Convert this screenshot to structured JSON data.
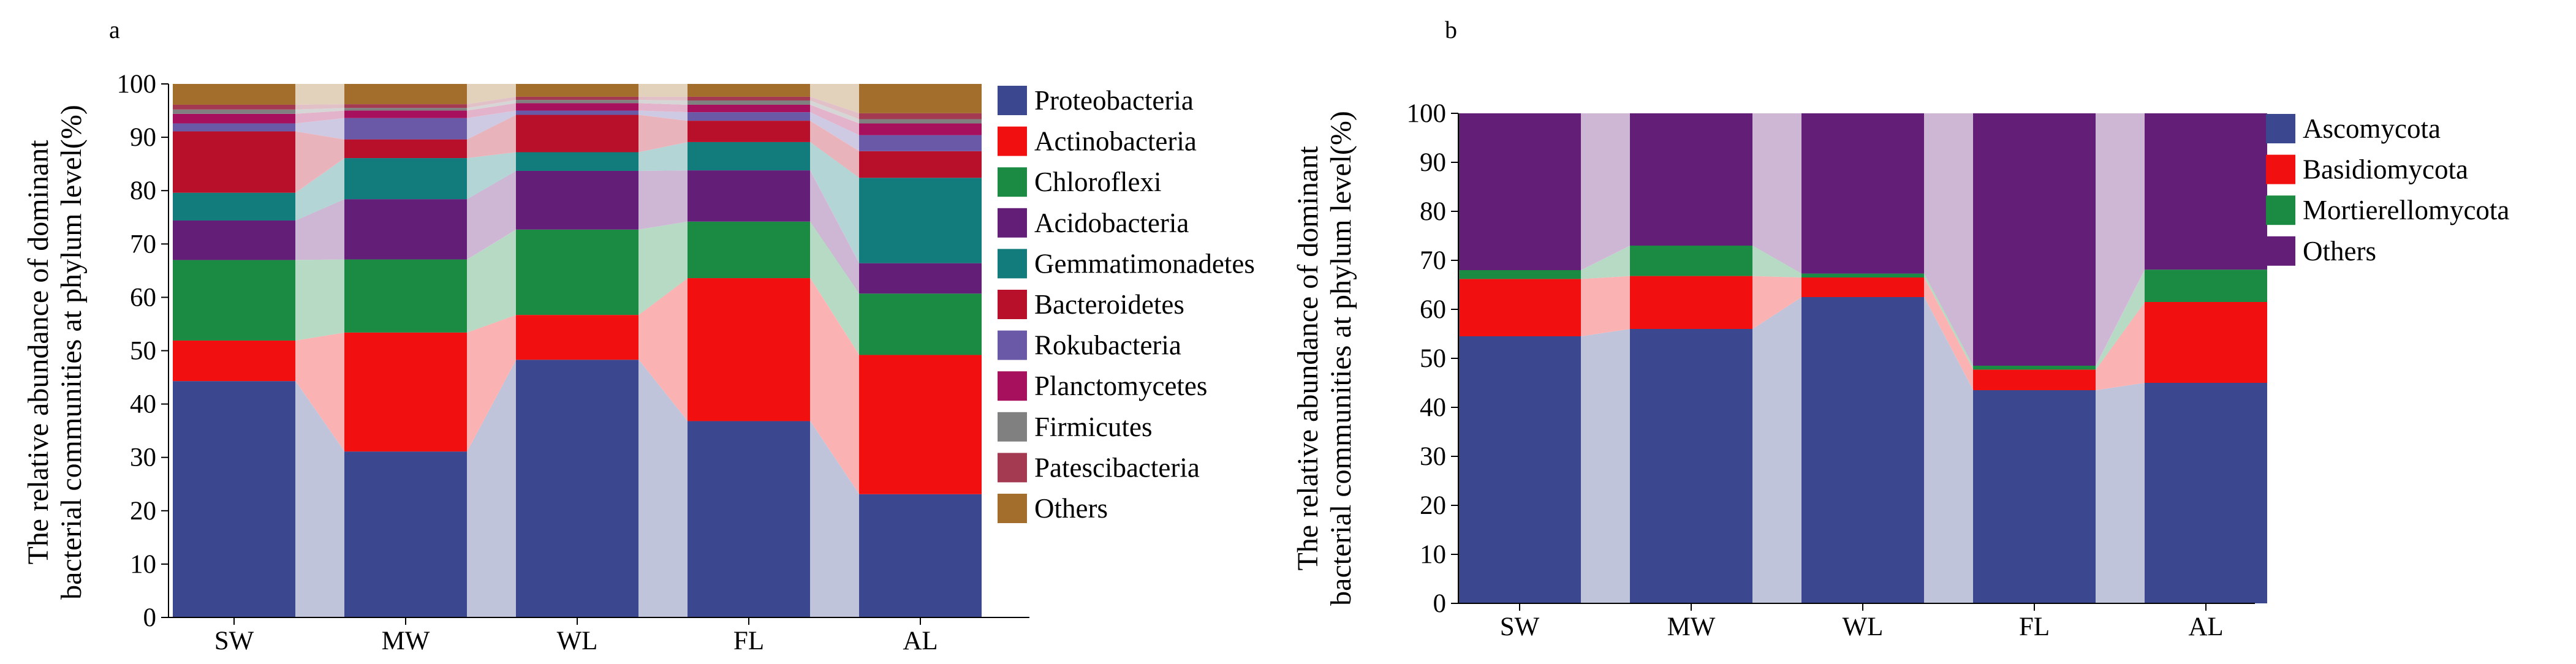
{
  "chart_data": [
    {
      "panel": "a",
      "type": "bar",
      "stacked": true,
      "ylabel_lines": [
        "The relative abundance of dominant",
        "bacterial communities at phylum level(%)"
      ],
      "categories": [
        "SW",
        "MW",
        "WL",
        "FL",
        "AL"
      ],
      "yticks": [
        "0",
        "10",
        "20",
        "30",
        "40",
        "50",
        "60",
        "70",
        "80",
        "90",
        "100"
      ],
      "ylim": [
        0,
        100
      ],
      "series": [
        {
          "name": "Proteobacteria",
          "color": "#3b4890",
          "values": [
            44.3,
            31.1,
            48.3,
            36.8,
            23.1
          ]
        },
        {
          "name": "Actinobacteria",
          "color": "#f20f0f",
          "values": [
            7.6,
            22.3,
            8.4,
            26.8,
            26.1
          ]
        },
        {
          "name": "Chloroflexi",
          "color": "#1b8b43",
          "values": [
            15.1,
            13.7,
            16.0,
            10.6,
            11.5
          ]
        },
        {
          "name": "Acidobacteria",
          "color": "#631e78",
          "values": [
            7.4,
            11.3,
            11.0,
            9.6,
            5.7
          ]
        },
        {
          "name": "Gemmatimonadetes",
          "color": "#127c7c",
          "values": [
            5.2,
            7.7,
            3.5,
            5.3,
            16.0
          ]
        },
        {
          "name": "Bacteroidetes",
          "color": "#b8102a",
          "values": [
            11.5,
            3.5,
            7.0,
            4.0,
            5.0
          ]
        },
        {
          "name": "Rokubacteria",
          "color": "#6a59a6",
          "values": [
            1.5,
            4.0,
            0.8,
            1.6,
            3.0
          ]
        },
        {
          "name": "Planctomycetes",
          "color": "#a7105c",
          "values": [
            1.8,
            1.4,
            1.4,
            1.4,
            2.2
          ]
        },
        {
          "name": "Firmicutes",
          "color": "#808080",
          "values": [
            0.8,
            0.5,
            0.6,
            0.8,
            0.8
          ]
        },
        {
          "name": "Patescibacteria",
          "color": "#a43a52",
          "values": [
            0.9,
            0.7,
            0.6,
            0.7,
            1.1
          ]
        },
        {
          "name": "Others",
          "color": "#a36e2b",
          "values": [
            3.9,
            3.8,
            2.4,
            2.4,
            5.5
          ]
        }
      ]
    },
    {
      "panel": "b",
      "type": "bar",
      "stacked": true,
      "ylabel_lines": [
        "The relative abundance of dominant",
        "bacterial communities at phylum level(%)"
      ],
      "categories": [
        "SW",
        "MW",
        "WL",
        "FL",
        "AL"
      ],
      "yticks": [
        "0",
        "10",
        "20",
        "30",
        "40",
        "50",
        "60",
        "70",
        "80",
        "90",
        "100"
      ],
      "ylim": [
        0,
        100
      ],
      "series": [
        {
          "name": "Ascomycota",
          "color": "#3b4890",
          "values": [
            54.5,
            56.0,
            62.5,
            43.5,
            45.0
          ]
        },
        {
          "name": "Basidiomycota",
          "color": "#f20f0f",
          "values": [
            11.7,
            10.8,
            4.0,
            4.2,
            16.5
          ]
        },
        {
          "name": "Mortierellomycota",
          "color": "#1b8b43",
          "values": [
            1.8,
            6.2,
            0.8,
            0.8,
            6.6
          ]
        },
        {
          "name": "Others",
          "color": "#631e78",
          "values": [
            32.0,
            27.0,
            32.7,
            51.5,
            31.9
          ]
        }
      ]
    }
  ]
}
